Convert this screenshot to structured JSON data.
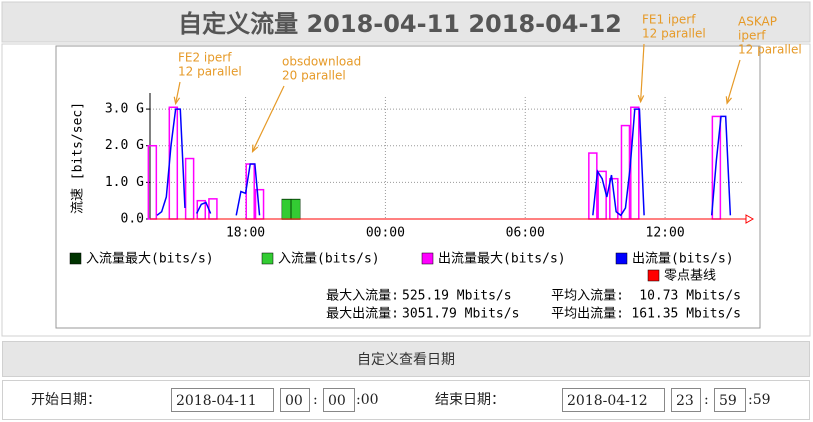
{
  "header": {
    "title": "自定义流量 2018-04-11 2018-04-12"
  },
  "chart_data": {
    "type": "combo",
    "y_label": "流速 [bits/sec]",
    "xlim": [
      13.9,
      39.3
    ],
    "xticks": [
      {
        "value": 18,
        "label": "18:00"
      },
      {
        "value": 24,
        "label": "00:00"
      },
      {
        "value": 30,
        "label": "06:00"
      },
      {
        "value": 36,
        "label": "12:00"
      }
    ],
    "ylim": [
      0,
      3.33
    ],
    "yticks": [
      {
        "value": 0,
        "label": "0.0"
      },
      {
        "value": 1,
        "label": "1.0 G"
      },
      {
        "value": 2,
        "label": "2.0 G"
      },
      {
        "value": 3,
        "label": "3.0 G"
      }
    ],
    "grid": true,
    "series": [
      {
        "name": "入流量最大(bits/s)",
        "color": "#003300",
        "type": "bar",
        "x": [
          19.75,
          20.15
        ],
        "values": [
          0.53,
          0.53
        ]
      },
      {
        "name": "入流量(bits/s)",
        "color": "#33cc33",
        "type": "bar",
        "x": [
          19.75,
          20.15
        ],
        "values": [
          0.52,
          0.52
        ]
      },
      {
        "name": "出流量最大(bits/s)",
        "color": "#ff00ff",
        "type": "bar",
        "x": [
          14.0,
          14.9,
          15.6,
          16.1,
          16.6,
          18.2,
          18.6,
          32.9,
          33.3,
          33.8,
          34.3,
          34.7,
          38.2
        ],
        "values": [
          2.0,
          3.05,
          1.65,
          0.5,
          0.55,
          1.5,
          0.8,
          1.8,
          1.3,
          1.1,
          2.55,
          3.05,
          2.8
        ]
      },
      {
        "name": "出流量(bits/s)",
        "color": "#0000ff",
        "type": "line",
        "x": [
          14.2,
          14.4,
          14.6,
          14.8,
          15.0,
          15.2,
          15.4,
          15.6,
          15.9,
          16.1,
          16.3,
          16.5,
          16.8,
          17.6,
          17.8,
          18.0,
          18.2,
          18.4,
          18.6,
          18.8,
          32.9,
          33.1,
          33.3,
          33.5,
          33.7,
          33.9,
          34.1,
          34.3,
          34.5,
          34.7,
          34.9,
          35.1,
          35.3,
          38.0,
          38.2,
          38.4,
          38.6,
          38.8
        ],
        "values": [
          0.1,
          0.2,
          0.6,
          2.0,
          3.0,
          3.0,
          0.3,
          null,
          0.15,
          0.4,
          0.45,
          0.15,
          null,
          0.1,
          0.75,
          0.7,
          1.5,
          1.5,
          0.1,
          null,
          0.1,
          1.3,
          1.1,
          0.6,
          1.2,
          0.2,
          0.1,
          0.3,
          1.4,
          3.0,
          3.0,
          0.1,
          null,
          0.1,
          1.6,
          2.8,
          2.8,
          0.1
        ]
      }
    ],
    "baseline": {
      "name": "零点基线",
      "color": "#ff0000"
    },
    "annotations": [
      {
        "lines": [
          "FE2 iperf",
          "12 parallel"
        ],
        "x": 15.0,
        "y": 3.15
      },
      {
        "lines": [
          "obsdownload",
          "20 parallel"
        ],
        "x": 18.3,
        "y": 1.84
      },
      {
        "lines": [
          "FE1 iperf",
          "12 parallel"
        ],
        "x": 34.95,
        "y": 3.2
      },
      {
        "lines": [
          "ASKAP",
          "iperf",
          "12 parallel"
        ],
        "x": 38.66,
        "y": 3.16
      }
    ],
    "stats": [
      [
        "最大入流量:",
        "525.19 Mbits/s",
        "平均入流量:",
        "10.73 Mbits/s"
      ],
      [
        "最大出流量:",
        "3051.79 Mbits/s",
        "平均出流量:",
        "161.35 Mbits/s"
      ]
    ]
  },
  "date_form": {
    "title": "自定义查看日期",
    "start_label": "开始日期：",
    "start_date": "2018-04-11",
    "start_hour": "00",
    "separator": ":",
    "start_minute": "00",
    "start_second": ":00",
    "end_label": "结束日期：",
    "end_date": "2018-04-12",
    "end_hour": "23",
    "end_minute": "59",
    "end_second": ":59"
  }
}
